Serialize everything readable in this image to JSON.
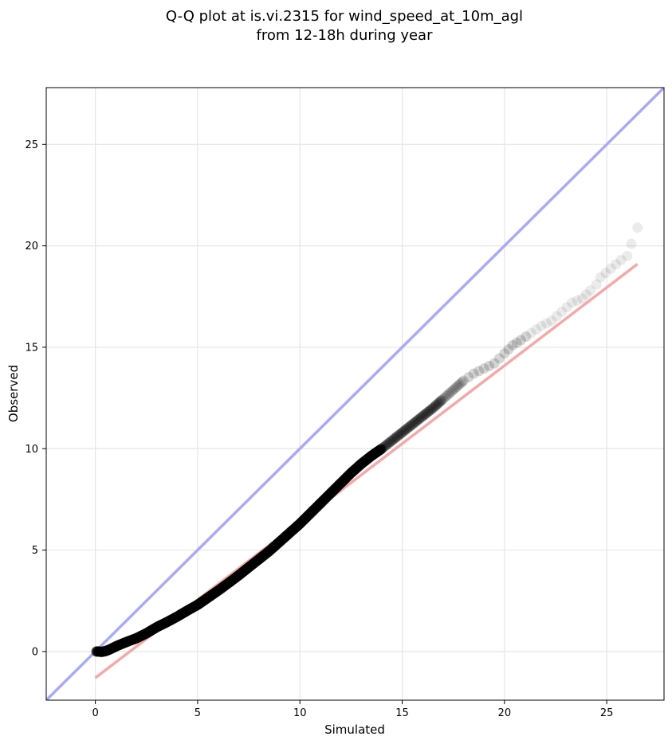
{
  "chart_data": {
    "type": "scatter",
    "title_line1": "Q-Q plot at is.vi.2315 for wind_speed_at_10m_agl",
    "title_line2": "from 12-18h during year",
    "xlabel": "Simulated",
    "ylabel": "Observed",
    "xlim": [
      -2.4,
      27.8
    ],
    "ylim": [
      -2.4,
      27.8
    ],
    "xticks": [
      0,
      5,
      10,
      15,
      20,
      25
    ],
    "yticks": [
      0,
      5,
      10,
      15,
      20,
      25
    ],
    "grid": true,
    "identity_line": {
      "from": [
        -2.4,
        -2.4
      ],
      "to": [
        27.8,
        27.8
      ],
      "color": "#aaaaf5"
    },
    "fit_line": {
      "from": [
        0,
        -1.3
      ],
      "to": [
        26.5,
        19.1
      ],
      "color": "#f5a8a8"
    },
    "points_color": "#000000",
    "points": [
      [
        0.05,
        0.0
      ],
      [
        0.15,
        0.0
      ],
      [
        0.3,
        -0.02
      ],
      [
        0.5,
        0.02
      ],
      [
        0.7,
        0.1
      ],
      [
        1.0,
        0.25
      ],
      [
        1.3,
        0.38
      ],
      [
        1.6,
        0.5
      ],
      [
        2.0,
        0.65
      ],
      [
        2.5,
        0.9
      ],
      [
        3.0,
        1.2
      ],
      [
        3.5,
        1.45
      ],
      [
        4.0,
        1.72
      ],
      [
        4.5,
        2.02
      ],
      [
        5.0,
        2.3
      ],
      [
        5.5,
        2.65
      ],
      [
        6.0,
        3.0
      ],
      [
        6.5,
        3.37
      ],
      [
        7.0,
        3.75
      ],
      [
        7.5,
        4.15
      ],
      [
        8.0,
        4.55
      ],
      [
        8.5,
        4.95
      ],
      [
        9.0,
        5.4
      ],
      [
        9.5,
        5.85
      ],
      [
        10.0,
        6.3
      ],
      [
        10.5,
        6.8
      ],
      [
        11.0,
        7.3
      ],
      [
        11.5,
        7.8
      ],
      [
        12.0,
        8.3
      ],
      [
        12.5,
        8.8
      ],
      [
        13.0,
        9.25
      ],
      [
        13.5,
        9.65
      ],
      [
        14.0,
        10.0
      ],
      [
        14.5,
        10.4
      ],
      [
        15.0,
        10.8
      ],
      [
        15.5,
        11.2
      ],
      [
        16.0,
        11.6
      ],
      [
        16.5,
        12.0
      ],
      [
        17.0,
        12.45
      ],
      [
        17.5,
        12.9
      ],
      [
        18.0,
        13.35
      ],
      [
        18.5,
        13.7
      ],
      [
        19.0,
        13.95
      ],
      [
        19.5,
        14.2
      ],
      [
        20.0,
        14.7
      ],
      [
        20.4,
        15.1
      ],
      [
        20.8,
        15.35
      ],
      [
        21.3,
        15.7
      ],
      [
        21.8,
        16.05
      ],
      [
        22.3,
        16.3
      ],
      [
        22.8,
        16.75
      ],
      [
        23.3,
        17.2
      ],
      [
        23.8,
        17.4
      ],
      [
        24.2,
        17.8
      ],
      [
        24.5,
        18.1
      ],
      [
        24.7,
        18.45
      ],
      [
        25.7,
        19.3
      ],
      [
        26.0,
        19.5
      ],
      [
        26.2,
        20.1
      ],
      [
        26.5,
        20.9
      ]
    ]
  }
}
